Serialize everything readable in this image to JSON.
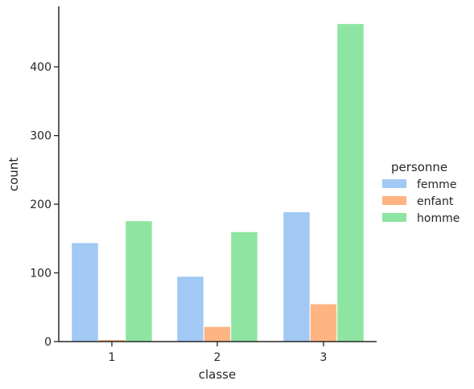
{
  "chart_data": {
    "type": "bar",
    "xlabel": "classe",
    "ylabel": "count",
    "categories": [
      "1",
      "2",
      "3"
    ],
    "ylim": [
      0,
      488
    ],
    "yticks": [
      0,
      100,
      200,
      300,
      400
    ],
    "grid": false,
    "legend": {
      "title": "personne",
      "placement": "right"
    },
    "series": [
      {
        "name": "femme",
        "color": "#a1c9f4",
        "values": [
          144,
          95,
          189
        ]
      },
      {
        "name": "enfant",
        "color": "#ffb482",
        "values": [
          3,
          22,
          55
        ]
      },
      {
        "name": "homme",
        "color": "#8de5a1",
        "values": [
          176,
          160,
          463
        ]
      }
    ]
  }
}
